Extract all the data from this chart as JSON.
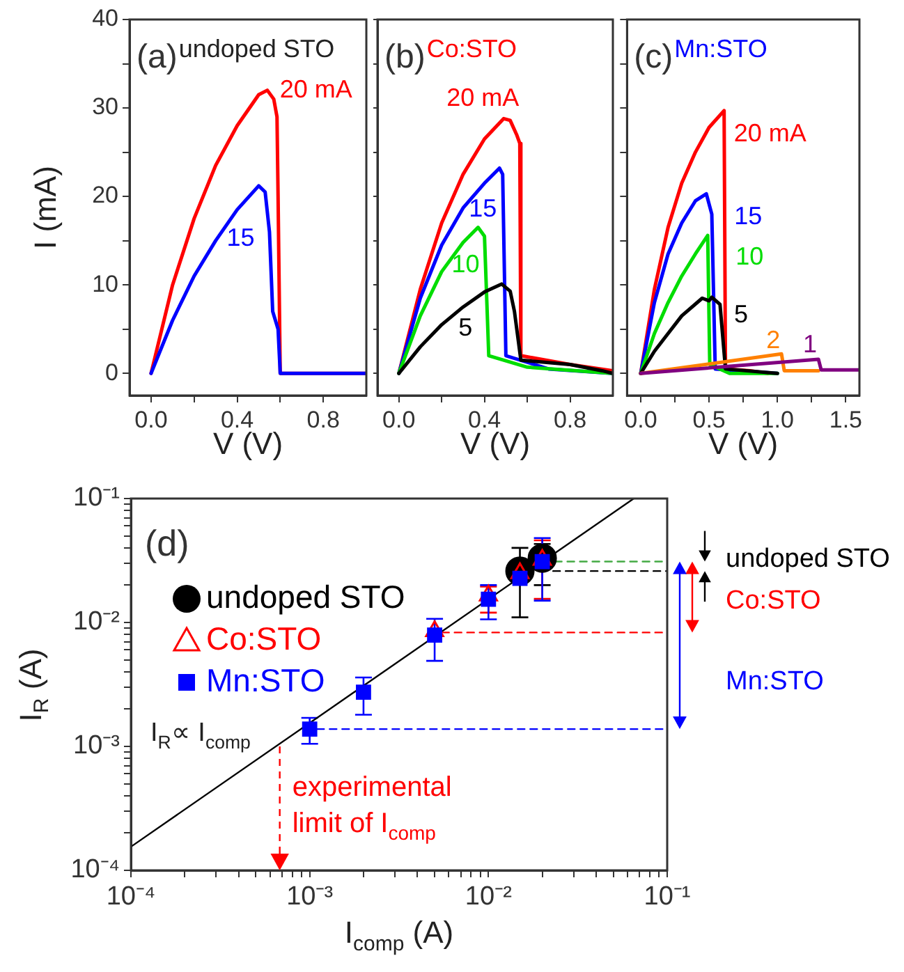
{
  "chart_data": [
    {
      "type": "line",
      "title": "undoped STO",
      "xlabel": "V (V)",
      "ylabel": "I (mA)",
      "xlim": [
        -0.1,
        1.0
      ],
      "xticks": [
        {
          "value": 0,
          "label": "0.0"
        },
        {
          "value": 0.2,
          "label": null
        },
        {
          "value": 0.4,
          "label": "0.4"
        },
        {
          "value": 0.6,
          "label": null
        },
        {
          "value": 0.8,
          "label": "0.8"
        }
      ],
      "ylim": [
        -2.5,
        40
      ],
      "yticks": [
        0,
        {
          "value": 5,
          "label": null
        },
        10,
        {
          "value": 15,
          "label": null
        },
        20,
        {
          "value": 25,
          "label": null
        },
        30,
        {
          "value": 35,
          "label": null
        },
        40
      ],
      "annotations": [
        "(a)"
      ],
      "series": [
        {
          "name": "20 mA",
          "color": "#ff0000",
          "x": [
            0,
            0.1,
            0.2,
            0.3,
            0.4,
            0.5,
            0.54,
            0.57,
            0.585,
            0.59,
            0.6,
            1.0
          ],
          "values": [
            0,
            10,
            17.5,
            23.5,
            28,
            31.5,
            32,
            31,
            29,
            20,
            0,
            0
          ]
        },
        {
          "name": "15",
          "color": "#0000ff",
          "x": [
            0,
            0.1,
            0.2,
            0.3,
            0.4,
            0.5,
            0.53,
            0.55,
            0.565,
            0.59,
            0.6,
            1.0
          ],
          "values": [
            0,
            6,
            11,
            15,
            18.5,
            21.2,
            20.5,
            16,
            7,
            5,
            0,
            0
          ]
        }
      ]
    },
    {
      "type": "line",
      "title": "Co:STO",
      "xlabel": "V (V)",
      "tick_labels": "x",
      "xlim": [
        -0.1,
        1.0
      ],
      "xticks": [
        {
          "value": 0,
          "label": "0.0"
        },
        {
          "value": 0.2,
          "label": null
        },
        {
          "value": 0.4,
          "label": "0.4"
        },
        {
          "value": 0.6,
          "label": null
        },
        {
          "value": 0.8,
          "label": "0.8"
        }
      ],
      "ylim": [
        -2.5,
        40
      ],
      "yticks": [
        0,
        {
          "value": 5,
          "label": null
        },
        10,
        {
          "value": 15,
          "label": null
        },
        20,
        {
          "value": 25,
          "label": null
        },
        30,
        {
          "value": 35,
          "label": null
        },
        40
      ],
      "annotations": [
        "(b)"
      ],
      "series": [
        {
          "name": "20 mA",
          "color": "#ff0000",
          "x": [
            0,
            0.1,
            0.2,
            0.3,
            0.4,
            0.49,
            0.52,
            0.55,
            0.565,
            0.57,
            0.8,
            1.0
          ],
          "values": [
            0,
            9.5,
            17,
            22.5,
            26.5,
            28.8,
            28.6,
            27,
            26,
            2,
            1,
            0.3
          ]
        },
        {
          "name": "15",
          "color": "#0000ff",
          "x": [
            0,
            0.1,
            0.2,
            0.3,
            0.4,
            0.47,
            0.485,
            0.5,
            0.7,
            1.0
          ],
          "values": [
            0,
            8.5,
            14.5,
            18.7,
            21.5,
            23.2,
            22.5,
            2,
            0.5,
            0
          ]
        },
        {
          "name": "10",
          "color": "#00dd00",
          "x": [
            0,
            0.1,
            0.2,
            0.3,
            0.37,
            0.4,
            0.42,
            0.6,
            1.0
          ],
          "values": [
            0,
            6.5,
            11.5,
            14.8,
            16.5,
            15.5,
            2,
            0.7,
            0
          ]
        },
        {
          "name": "5",
          "color": "#000000",
          "x": [
            0,
            0.1,
            0.2,
            0.3,
            0.4,
            0.48,
            0.52,
            0.54,
            0.57,
            0.8,
            0.95,
            1.0
          ],
          "values": [
            0,
            3,
            5.5,
            7.5,
            9.2,
            10.1,
            9.3,
            7,
            1.5,
            1,
            0.3,
            0
          ]
        }
      ]
    },
    {
      "type": "line",
      "title": "Mn:STO",
      "xlabel": "V (V)",
      "tick_labels": "x",
      "xlim": [
        -0.1,
        1.6
      ],
      "xticks": [
        {
          "value": 0,
          "label": "0.0"
        },
        {
          "value": 0.25,
          "label": null
        },
        {
          "value": 0.5,
          "label": "0.5"
        },
        {
          "value": 0.75,
          "label": null
        },
        {
          "value": 1,
          "label": "1.0"
        },
        {
          "value": 1.25,
          "label": null
        },
        {
          "value": 1.5,
          "label": "1.5"
        }
      ],
      "ylim": [
        -2.5,
        40
      ],
      "yticks": [
        0,
        {
          "value": 5,
          "label": null
        },
        10,
        {
          "value": 15,
          "label": null
        },
        20,
        {
          "value": 25,
          "label": null
        },
        30,
        {
          "value": 35,
          "label": null
        },
        40
      ],
      "annotations": [
        "(c)"
      ],
      "series": [
        {
          "name": "20 mA",
          "color": "#ff0000",
          "x": [
            0,
            0.1,
            0.2,
            0.3,
            0.4,
            0.5,
            0.61,
            0.62,
            0.8,
            0.93
          ],
          "values": [
            0,
            9.5,
            16.5,
            21.5,
            25,
            27.8,
            29.7,
            0.5,
            0.3,
            0
          ]
        },
        {
          "name": "15",
          "color": "#0000ff",
          "x": [
            0,
            0.1,
            0.2,
            0.3,
            0.4,
            0.48,
            0.52,
            0.545,
            1.0
          ],
          "values": [
            0,
            8,
            13.5,
            17,
            19.5,
            20.3,
            18,
            0.5,
            0
          ]
        },
        {
          "name": "10",
          "color": "#00dd00",
          "x": [
            0,
            0.1,
            0.2,
            0.3,
            0.4,
            0.49,
            0.505,
            0.65,
            1.0
          ],
          "values": [
            0,
            4.5,
            8,
            11,
            13.5,
            15.6,
            1,
            0,
            0
          ]
        },
        {
          "name": "5",
          "color": "#000000",
          "x": [
            0,
            0.1,
            0.2,
            0.3,
            0.45,
            0.5,
            0.52,
            0.58,
            0.62,
            1.0
          ],
          "values": [
            0,
            2.5,
            4.5,
            6.5,
            8.5,
            8.2,
            8.6,
            7.8,
            0.5,
            0
          ]
        },
        {
          "name": "2",
          "color": "#ff8000",
          "x": [
            0,
            1.03,
            1.05,
            1.3
          ],
          "values": [
            0,
            2.2,
            0.3,
            0.3
          ]
        },
        {
          "name": "1",
          "color": "#800080",
          "x": [
            0,
            1.3,
            1.32,
            1.6
          ],
          "values": [
            0,
            1.6,
            0.4,
            0.4
          ]
        }
      ]
    },
    {
      "type": "scatter",
      "xlabel": "I$_{comp}$ (A)",
      "ylabel": "I$_{R}$ (A)",
      "log": "xy",
      "legend": "top left",
      "xlim": [
        0.0001,
        0.1
      ],
      "xticks": [
        {
          "value": 0.0001,
          "label": "10⁻⁴"
        },
        {
          "value": 0.0002,
          "label": null
        },
        {
          "value": 0.0003,
          "label": null
        },
        {
          "value": 0.0004,
          "label": null
        },
        {
          "value": 0.0005,
          "label": null
        },
        {
          "value": 0.0006,
          "label": null
        },
        {
          "value": 0.0007,
          "label": null
        },
        {
          "value": 0.0008,
          "label": null
        },
        {
          "value": 0.0009,
          "label": null
        },
        {
          "value": 0.001,
          "label": "10⁻³"
        },
        {
          "value": 0.002,
          "label": null
        },
        {
          "value": 0.003,
          "label": null
        },
        {
          "value": 0.004,
          "label": null
        },
        {
          "value": 0.005,
          "label": null
        },
        {
          "value": 0.006,
          "label": null
        },
        {
          "value": 0.007,
          "label": null
        },
        {
          "value": 0.008,
          "label": null
        },
        {
          "value": 0.009,
          "label": null
        },
        {
          "value": 0.01,
          "label": "10⁻²"
        },
        {
          "value": 0.02,
          "label": null
        },
        {
          "value": 0.03,
          "label": null
        },
        {
          "value": 0.04,
          "label": null
        },
        {
          "value": 0.05,
          "label": null
        },
        {
          "value": 0.06,
          "label": null
        },
        {
          "value": 0.07,
          "label": null
        },
        {
          "value": 0.08,
          "label": null
        },
        {
          "value": 0.09,
          "label": null
        },
        {
          "value": 0.1,
          "label": "10⁻¹"
        }
      ],
      "ylim": [
        0.0001,
        0.1
      ],
      "yticks": [
        {
          "value": 0.0001,
          "label": "10⁻⁴"
        },
        {
          "value": 0.0002,
          "label": null
        },
        {
          "value": 0.0003,
          "label": null
        },
        {
          "value": 0.0004,
          "label": null
        },
        {
          "value": 0.0005,
          "label": null
        },
        {
          "value": 0.0006,
          "label": null
        },
        {
          "value": 0.0007,
          "label": null
        },
        {
          "value": 0.0008,
          "label": null
        },
        {
          "value": 0.0009,
          "label": null
        },
        {
          "value": 0.001,
          "label": "10⁻³"
        },
        {
          "value": 0.002,
          "label": null
        },
        {
          "value": 0.003,
          "label": null
        },
        {
          "value": 0.004,
          "label": null
        },
        {
          "value": 0.005,
          "label": null
        },
        {
          "value": 0.006,
          "label": null
        },
        {
          "value": 0.007,
          "label": null
        },
        {
          "value": 0.008,
          "label": null
        },
        {
          "value": 0.009,
          "label": null
        },
        {
          "value": 0.01,
          "label": "10⁻²"
        },
        {
          "value": 0.02,
          "label": null
        },
        {
          "value": 0.03,
          "label": null
        },
        {
          "value": 0.04,
          "label": null
        },
        {
          "value": 0.05,
          "label": null
        },
        {
          "value": 0.06,
          "label": null
        },
        {
          "value": 0.07,
          "label": null
        },
        {
          "value": 0.08,
          "label": null
        },
        {
          "value": 0.09,
          "label": null
        },
        {
          "value": 0.1,
          "label": "10⁻¹"
        }
      ],
      "annotations": [
        "(d)",
        "I$_{R}$∝ I$_{comp}$",
        "undoped STO",
        "Co:STO",
        "Mn:STO"
      ],
      "ref_lines": [
        {
          "axis": "x",
          "value": 0.00068,
          "label": "experimental limit of I$_{comp}$",
          "color": "#ff0000",
          "line_style": "dashed"
        }
      ],
      "series": [
        {
          "type": "line",
          "color": "#000000",
          "x": [
            0.0001,
            0.065
          ],
          "values": [
            0.000155,
            0.1
          ],
          "marker": "none",
          "line_style": "solid"
        },
        {
          "type": "line",
          "color": "#44aa44",
          "x": [
            0.02,
            0.1
          ],
          "values": [
            0.031,
            0.031
          ],
          "marker": "none",
          "line_style": "dashed"
        },
        {
          "type": "line",
          "color": "#000000",
          "x": [
            0.023,
            0.1
          ],
          "values": [
            0.026,
            0.026
          ],
          "marker": "none",
          "line_style": "dashed"
        },
        {
          "type": "line",
          "color": "#ff0000",
          "x": [
            0.0055,
            0.1
          ],
          "values": [
            0.0083,
            0.0083
          ],
          "marker": "none",
          "line_style": "dashed"
        },
        {
          "type": "line",
          "color": "#0000ff",
          "x": [
            0.0011,
            0.1
          ],
          "values": [
            0.00138,
            0.00138
          ],
          "marker": "none",
          "line_style": "dashed"
        },
        {
          "name": "undoped STO",
          "color": "#000000",
          "marker": "circle",
          "x": [
            0.015,
            0.02
          ],
          "values": [
            0.026,
            0.033
          ],
          "errors": [
            [
              0.011,
              0.04
            ],
            [
              0.02,
              0.043
            ]
          ]
        },
        {
          "name": "Co:STO",
          "color": "#ff0000",
          "marker": "triangle",
          "x": [
            0.005,
            0.01,
            0.015,
            0.02
          ],
          "values": [
            0.0085,
            0.0165,
            0.025,
            0.032
          ],
          "errors": [
            null,
            [
              0.012,
              0.0195
            ],
            null,
            [
              0.0155,
              0.046
            ]
          ]
        },
        {
          "name": "Mn:STO",
          "color": "#0000ff",
          "marker": "square",
          "x": [
            0.001,
            0.002,
            0.005,
            0.01,
            0.015,
            0.02
          ],
          "values": [
            0.00138,
            0.00274,
            0.0079,
            0.0154,
            0.0227,
            0.031
          ],
          "errors": [
            [
              0.00105,
              0.0017
            ],
            [
              0.0018,
              0.0036
            ],
            [
              0.0049,
              0.0107
            ],
            [
              0.0106,
              0.02
            ],
            null,
            [
              0.015,
              0.048
            ]
          ]
        }
      ]
    }
  ]
}
